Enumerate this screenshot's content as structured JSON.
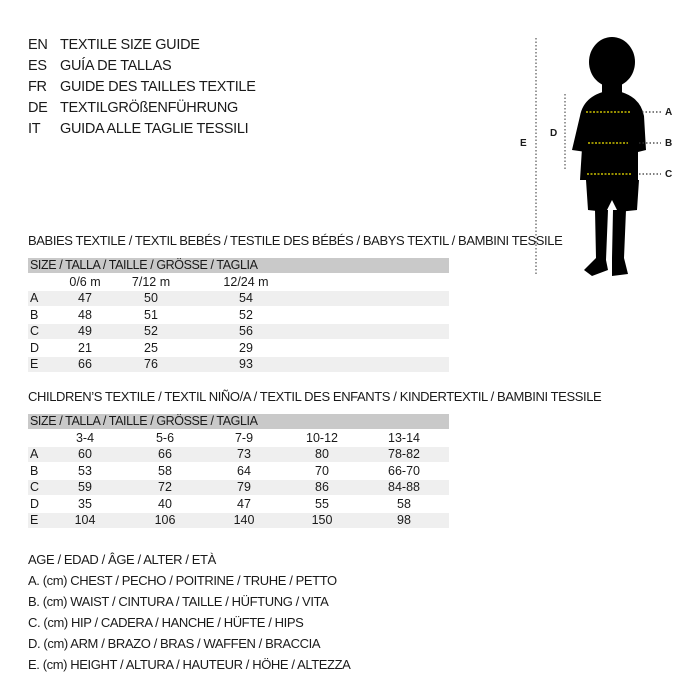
{
  "header": [
    {
      "code": "EN",
      "text": "TEXTILE SIZE GUIDE"
    },
    {
      "code": "ES",
      "text": "GUÍA DE TALLAS"
    },
    {
      "code": "FR",
      "text": "GUIDE DES TAILLES TEXTILE"
    },
    {
      "code": "DE",
      "text": "TEXTILGRÖßENFÜHRUNG"
    },
    {
      "code": "IT",
      "text": "GUIDA ALLE TAGLIE TESSILI"
    }
  ],
  "babies": {
    "title": "BABIES TEXTILE / TEXTIL BEBÉS / TESTILE DES BÉBÉS / BABYS TEXTIL / BAMBINI TESSILE",
    "size_label": "SIZE / TALLA / TAILLE / GRÖSSE / TAGLIA",
    "columns": [
      "0/6 m",
      "7/12 m",
      "12/24 m"
    ],
    "rows": [
      {
        "label": "A",
        "values": [
          "47",
          "50",
          "54"
        ]
      },
      {
        "label": "B",
        "values": [
          "48",
          "51",
          "52"
        ]
      },
      {
        "label": "C",
        "values": [
          "49",
          "52",
          "56"
        ]
      },
      {
        "label": "D",
        "values": [
          "21",
          "25",
          "29"
        ]
      },
      {
        "label": "E",
        "values": [
          "66",
          "76",
          "93"
        ]
      }
    ]
  },
  "children": {
    "title": "CHILDREN’S TEXTILE / TEXTIL NIÑO/A / TEXTIL DES ENFANTS / KINDERTEXTIL / BAMBINI TESSILE",
    "size_label": "SIZE / TALLA / TAILLE / GRÖSSE / TAGLIA",
    "columns": [
      "3-4",
      "5-6",
      "7-9",
      "10-12",
      "13-14"
    ],
    "rows": [
      {
        "label": "A",
        "values": [
          "60",
          "66",
          "73",
          "80",
          "78-82"
        ]
      },
      {
        "label": "B",
        "values": [
          "53",
          "58",
          "64",
          "70",
          "66-70"
        ]
      },
      {
        "label": "C",
        "values": [
          "59",
          "72",
          "79",
          "86",
          "84-88"
        ]
      },
      {
        "label": "D",
        "values": [
          "35",
          "40",
          "47",
          "55",
          "58"
        ]
      },
      {
        "label": "E",
        "values": [
          "104",
          "106",
          "140",
          "150",
          "98"
        ]
      }
    ]
  },
  "legend": [
    "AGE / EDAD / ÂGE / ALTER / ETÀ",
    "A. (cm) CHEST / PECHO / POITRINE / TRUHE / PETTO",
    "B. (cm) WAIST / CINTURA / TAILLE / HÜFTUNG / VITA",
    "C. (cm) HIP / CADERA / HANCHE / HÜFTE / HIPS",
    "D. (cm) ARM / BRAZO / BRAS / WAFFEN / BRACCIA",
    "E. (cm) HEIGHT / ALTURA / HAUTEUR / HÖHE / ALTEZZA"
  ],
  "figure": {
    "labels": {
      "a": "A",
      "b": "B",
      "c": "C",
      "d": "D",
      "e": "E"
    },
    "marker_color": "#f2e500"
  }
}
